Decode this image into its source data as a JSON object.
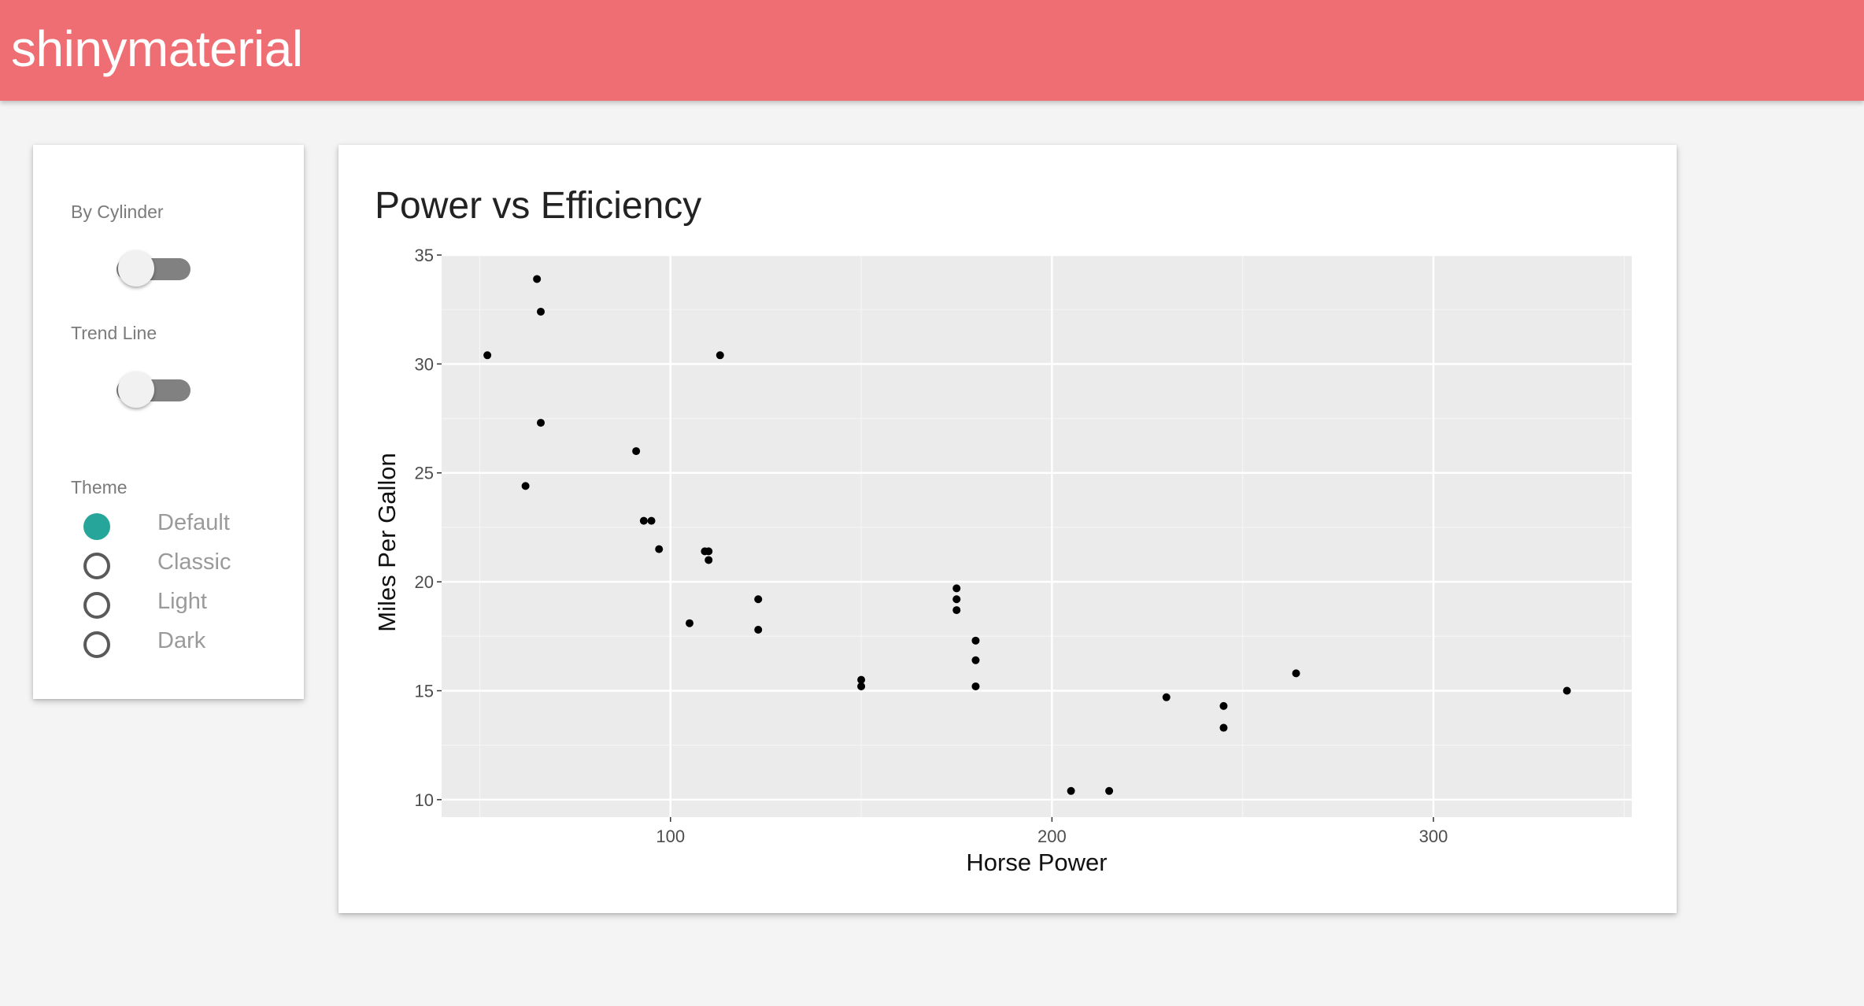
{
  "header": {
    "title": "shinymaterial",
    "color": "#ee6e73"
  },
  "controls": {
    "by_cylinder": {
      "label": "By Cylinder",
      "on": false
    },
    "trend_line": {
      "label": "Trend Line",
      "on": false
    },
    "theme": {
      "label": "Theme",
      "selected": "Default",
      "options": [
        "Default",
        "Classic",
        "Light",
        "Dark"
      ],
      "accent": "#26a69a"
    }
  },
  "chart_data": {
    "type": "scatter",
    "title": "Power vs Efficiency",
    "xlabel": "Horse Power",
    "ylabel": "Miles Per Gallon",
    "xlim": [
      40,
      352
    ],
    "ylim": [
      9.2,
      35
    ],
    "xticks": [
      100,
      200,
      300
    ],
    "yticks": [
      10,
      15,
      20,
      25,
      30,
      35
    ],
    "grid": true,
    "panel_bg": "#ebebeb",
    "points": [
      {
        "x": 52,
        "y": 30.4
      },
      {
        "x": 62,
        "y": 24.4
      },
      {
        "x": 65,
        "y": 33.9
      },
      {
        "x": 66,
        "y": 32.4
      },
      {
        "x": 66,
        "y": 27.3
      },
      {
        "x": 91,
        "y": 26.0
      },
      {
        "x": 93,
        "y": 22.8
      },
      {
        "x": 95,
        "y": 22.8
      },
      {
        "x": 97,
        "y": 21.5
      },
      {
        "x": 105,
        "y": 18.1
      },
      {
        "x": 109,
        "y": 21.4
      },
      {
        "x": 110,
        "y": 21.4
      },
      {
        "x": 110,
        "y": 21.0
      },
      {
        "x": 113,
        "y": 30.4
      },
      {
        "x": 123,
        "y": 19.2
      },
      {
        "x": 123,
        "y": 17.8
      },
      {
        "x": 150,
        "y": 15.5
      },
      {
        "x": 150,
        "y": 15.2
      },
      {
        "x": 175,
        "y": 19.7
      },
      {
        "x": 175,
        "y": 19.2
      },
      {
        "x": 175,
        "y": 18.7
      },
      {
        "x": 180,
        "y": 17.3
      },
      {
        "x": 180,
        "y": 16.4
      },
      {
        "x": 180,
        "y": 15.2
      },
      {
        "x": 205,
        "y": 10.4
      },
      {
        "x": 215,
        "y": 10.4
      },
      {
        "x": 230,
        "y": 14.7
      },
      {
        "x": 245,
        "y": 14.3
      },
      {
        "x": 245,
        "y": 13.3
      },
      {
        "x": 264,
        "y": 15.8
      },
      {
        "x": 335,
        "y": 15.0
      }
    ]
  }
}
